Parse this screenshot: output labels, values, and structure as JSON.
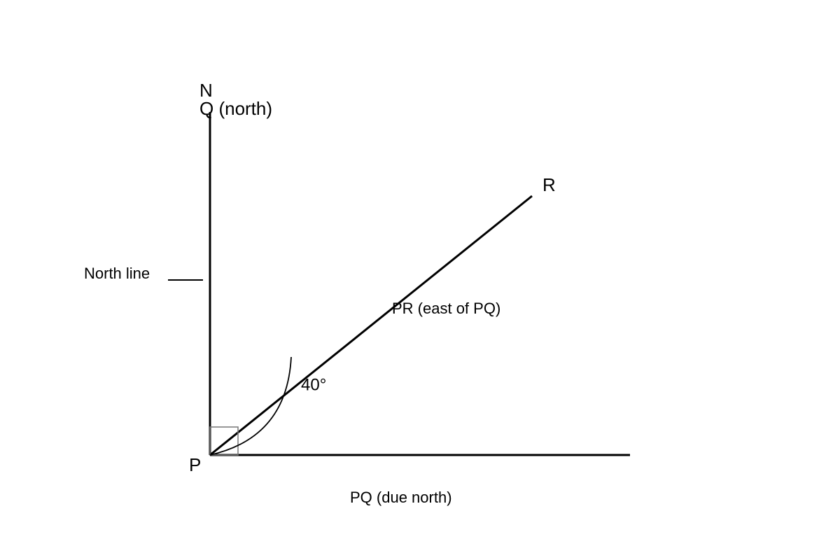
{
  "diagram": {
    "points": {
      "north": "N",
      "q": "Q (north)",
      "r": "R",
      "p": "P"
    },
    "labels": {
      "north_line": "North line",
      "pr": "PR (east of PQ)",
      "angle": "40°",
      "pq": "PQ (due north)"
    }
  }
}
